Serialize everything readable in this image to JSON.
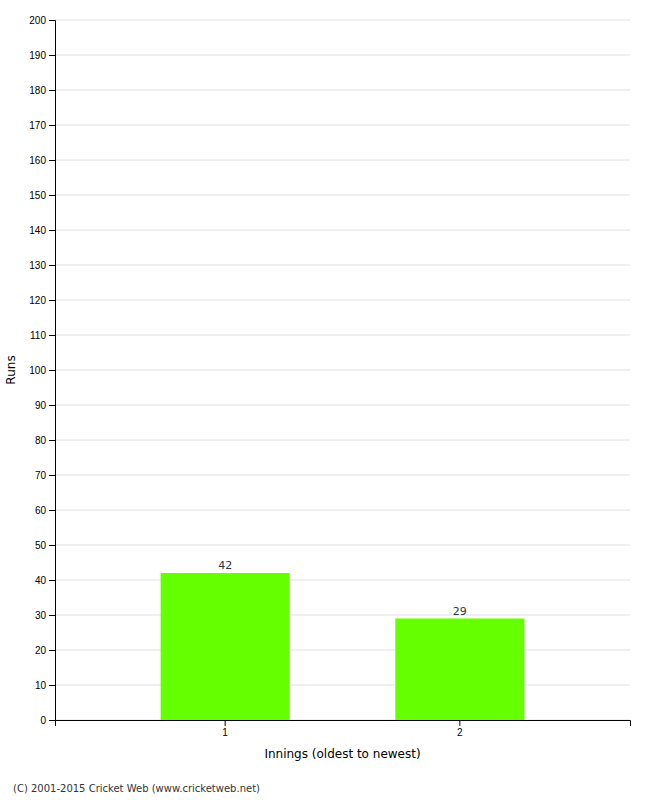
{
  "chart_data": {
    "type": "bar",
    "categories": [
      "1",
      "2"
    ],
    "values": [
      42,
      29
    ],
    "color": "#66ff00",
    "xlabel": "Innings (oldest to newest)",
    "ylabel": "Runs",
    "ylim": [
      0,
      200
    ],
    "yticks": [
      0,
      10,
      20,
      30,
      40,
      50,
      60,
      70,
      80,
      90,
      100,
      110,
      120,
      130,
      140,
      150,
      160,
      170,
      180,
      190,
      200
    ],
    "grid": true,
    "data_labels": true,
    "annotations": [
      "(C) 2001-2015 Cricket Web (www.cricketweb.net)"
    ]
  }
}
